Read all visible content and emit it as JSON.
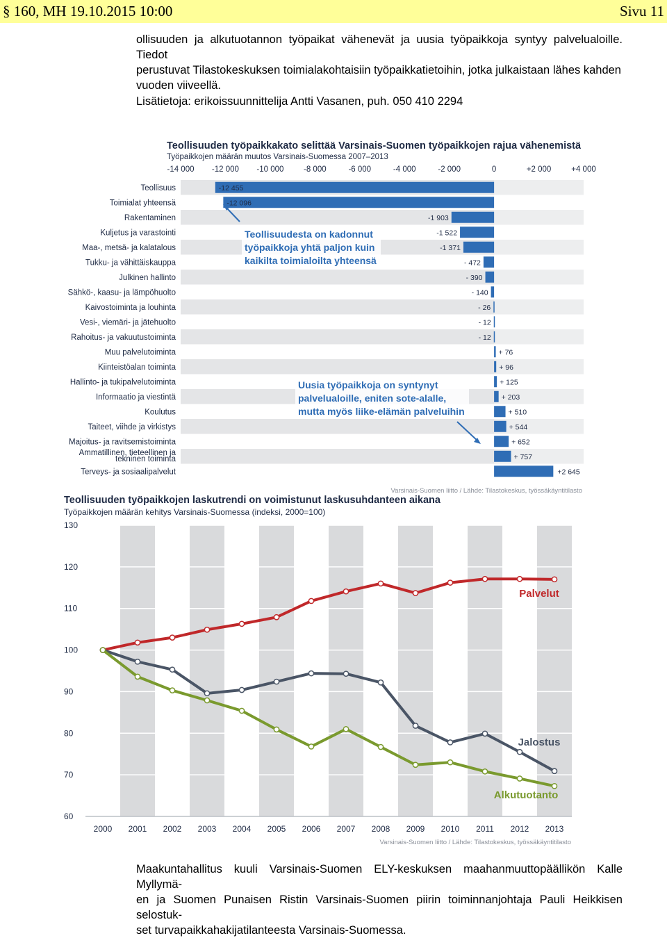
{
  "header": {
    "left": "§ 160, MH 19.10.2015 10:00",
    "right": "Sivu 11"
  },
  "intro": {
    "line1": "ollisuuden ja alkutuotannon työpaikat vähenevät ja uusia työpaikkoja syntyy palvelualoille. Tiedot",
    "line2": "perustuvat Tilastokeskuksen toimialakohtaisiin työpaikkatietoihin, jotka julkaistaan lähes kahden",
    "line3": "vuoden viiveellä.",
    "contact": "Lisätietoja: erikoissuunnittelija Antti Vasanen, puh. 050 410 2294"
  },
  "footer": {
    "line1": "Maakuntahallitus kuuli Varsinais-Suomen ELY-keskuksen maahanmuuttopäällikön Kalle Myllymä-",
    "line2": "en ja Suomen Punaisen Ristin Varsinais-Suomen piirin toiminnanjohtaja Pauli Heikkisen selostuk-",
    "line3": "set turvapaikkahakijatilanteesta Varsinais-Suomessa."
  },
  "chart_data": [
    {
      "type": "bar",
      "orientation": "horizontal",
      "title": "Teollisuuden työpaikkakato selittää Varsinais-Suomen työpaikkojen rajua vähenemistä",
      "subtitle": "Työpaikkojen määrän muutos Varsinais-Suomessa 2007–2013",
      "xlim": [
        -14000,
        4000
      ],
      "x_ticks": [
        -14000,
        -12000,
        -10000,
        -8000,
        -6000,
        -4000,
        -2000,
        0,
        2000,
        4000
      ],
      "x_tick_labels": [
        "-14 000",
        "-12 000",
        "-10 000",
        "-8 000",
        "-6 000",
        "-4 000",
        "-2 000",
        "0",
        "+2 000",
        "+4 000"
      ],
      "categories": [
        "Teollisuus",
        "Toimialat yhteensä",
        "Rakentaminen",
        "Kuljetus ja varastointi",
        "Maa-, metsä- ja kalatalous",
        "Tukku- ja vähittäiskauppa",
        "Julkinen hallinto",
        "Sähkö-, kaasu- ja lämpöhuolto",
        "Kaivostoiminta ja louhinta",
        "Vesi-, viemäri- ja jätehuolto",
        "Rahoitus- ja vakuutustoiminta",
        "Muu palvelutoiminta",
        "Kiinteistöalan toiminta",
        "Hallinto- ja tukipalvelutoiminta",
        "Informaatio ja viestintä",
        "Koulutus",
        "Taiteet, viihde ja virkistys",
        "Majoitus- ja ravitsemistoiminta",
        "Ammatillinen, tieteellinen ja tekninen toiminta",
        "Terveys- ja sosiaalipalvelut"
      ],
      "values": [
        -12455,
        -12096,
        -1903,
        -1522,
        -1371,
        -472,
        -390,
        -140,
        -26,
        -12,
        -12,
        76,
        96,
        125,
        203,
        510,
        544,
        652,
        757,
        2645
      ],
      "value_labels": [
        "-12 455",
        "-12 096",
        "-1 903",
        "-1 522",
        "-1 371",
        "- 472",
        "- 390",
        "- 140",
        "- 26",
        "- 12",
        "- 12",
        "+ 76",
        "+ 96",
        "+ 125",
        "+ 203",
        "+ 510",
        "+ 544",
        "+ 652",
        "+ 757",
        "+2 645"
      ],
      "annotations": [
        [
          "Teollisuudesta on kadonnut",
          "työpaikkoja yhtä paljon kuin",
          "kaikilta toimialoilta yhteensä"
        ],
        [
          "Uusia työpaikkoja on syntynyt",
          "palvelualoille, eniten sote-alalle,",
          "mutta myös liike-elämän palveluihin"
        ]
      ],
      "source": "Varsinais-Suomen liitto / Lähde: Tilastokeskus, työssäkäyntitilasto",
      "bar_color": "#2f6db5"
    },
    {
      "type": "line",
      "title": "Teollisuuden työpaikkojen laskutrendi on voimistunut laskusuhdanteen aikana",
      "subtitle": "Työpaikkojen määrän kehitys Varsinais-Suomessa (indeksi, 2000=100)",
      "x": [
        2000,
        2001,
        2002,
        2003,
        2004,
        2005,
        2006,
        2007,
        2008,
        2009,
        2010,
        2011,
        2012,
        2013
      ],
      "ylim": [
        60,
        130
      ],
      "y_ticks": [
        60,
        70,
        80,
        90,
        100,
        110,
        120,
        130
      ],
      "series": [
        {
          "name": "Palvelut",
          "color": "#c0282a",
          "values": [
            100,
            101.8,
            103.0,
            104.9,
            106.3,
            107.9,
            111.8,
            114.1,
            116.0,
            113.7,
            116.2,
            117.1,
            117.1,
            117.0
          ]
        },
        {
          "name": "Jalostus",
          "color": "#4a5566",
          "values": [
            100,
            97.2,
            95.3,
            89.6,
            90.4,
            92.4,
            94.4,
            94.3,
            92.2,
            81.8,
            77.8,
            79.9,
            75.5,
            70.9
          ]
        },
        {
          "name": "Alkutuotanto",
          "color": "#7a9a2e",
          "values": [
            100,
            93.6,
            90.3,
            87.9,
            85.4,
            80.9,
            76.8,
            81.0,
            76.7,
            72.4,
            73.0,
            70.8,
            69.1,
            67.3
          ]
        }
      ],
      "source": "Varsinais-Suomen liitto / Lähde: Tilastokeskus, työssäkäyntitilasto"
    }
  ]
}
